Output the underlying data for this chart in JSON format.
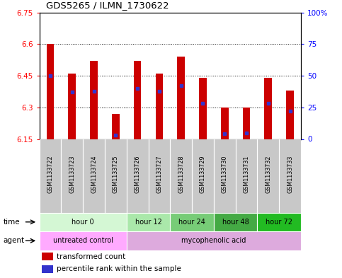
{
  "title": "GDS5265 / ILMN_1730622",
  "samples": [
    "GSM1133722",
    "GSM1133723",
    "GSM1133724",
    "GSM1133725",
    "GSM1133726",
    "GSM1133727",
    "GSM1133728",
    "GSM1133729",
    "GSM1133730",
    "GSM1133731",
    "GSM1133732",
    "GSM1133733"
  ],
  "transformed_counts": [
    6.6,
    6.46,
    6.52,
    6.27,
    6.52,
    6.46,
    6.54,
    6.44,
    6.3,
    6.3,
    6.44,
    6.38
  ],
  "percentile_ranks": [
    50,
    37,
    38,
    3,
    40,
    38,
    42,
    28,
    4,
    5,
    28,
    22
  ],
  "ylim": [
    6.15,
    6.75
  ],
  "yticks": [
    6.15,
    6.3,
    6.45,
    6.6,
    6.75
  ],
  "ytick_labels": [
    "6.15",
    "6.3",
    "6.45",
    "6.6",
    "6.75"
  ],
  "right_yticks": [
    0,
    25,
    50,
    75,
    100
  ],
  "right_ytick_labels": [
    "0",
    "25",
    "50",
    "75",
    "100%"
  ],
  "bar_color": "#cc0000",
  "percentile_color": "#3333cc",
  "bar_width": 0.35,
  "time_groups": [
    {
      "label": "hour 0",
      "start": 0,
      "end": 3,
      "color": "#d4f7d4"
    },
    {
      "label": "hour 12",
      "start": 4,
      "end": 5,
      "color": "#aae8aa"
    },
    {
      "label": "hour 24",
      "start": 6,
      "end": 7,
      "color": "#77cc77"
    },
    {
      "label": "hour 48",
      "start": 8,
      "end": 9,
      "color": "#44aa44"
    },
    {
      "label": "hour 72",
      "start": 10,
      "end": 11,
      "color": "#22bb22"
    }
  ],
  "agent_groups": [
    {
      "label": "untreated control",
      "start": 0,
      "end": 3,
      "color": "#ffaaff"
    },
    {
      "label": "mycophenolic acid",
      "start": 4,
      "end": 11,
      "color": "#ddaadd"
    }
  ],
  "sample_bg_color": "#c8c8c8",
  "legend_red_label": "transformed count",
  "legend_blue_label": "percentile rank within the sample",
  "grid_yticks": [
    6.3,
    6.45,
    6.6
  ]
}
